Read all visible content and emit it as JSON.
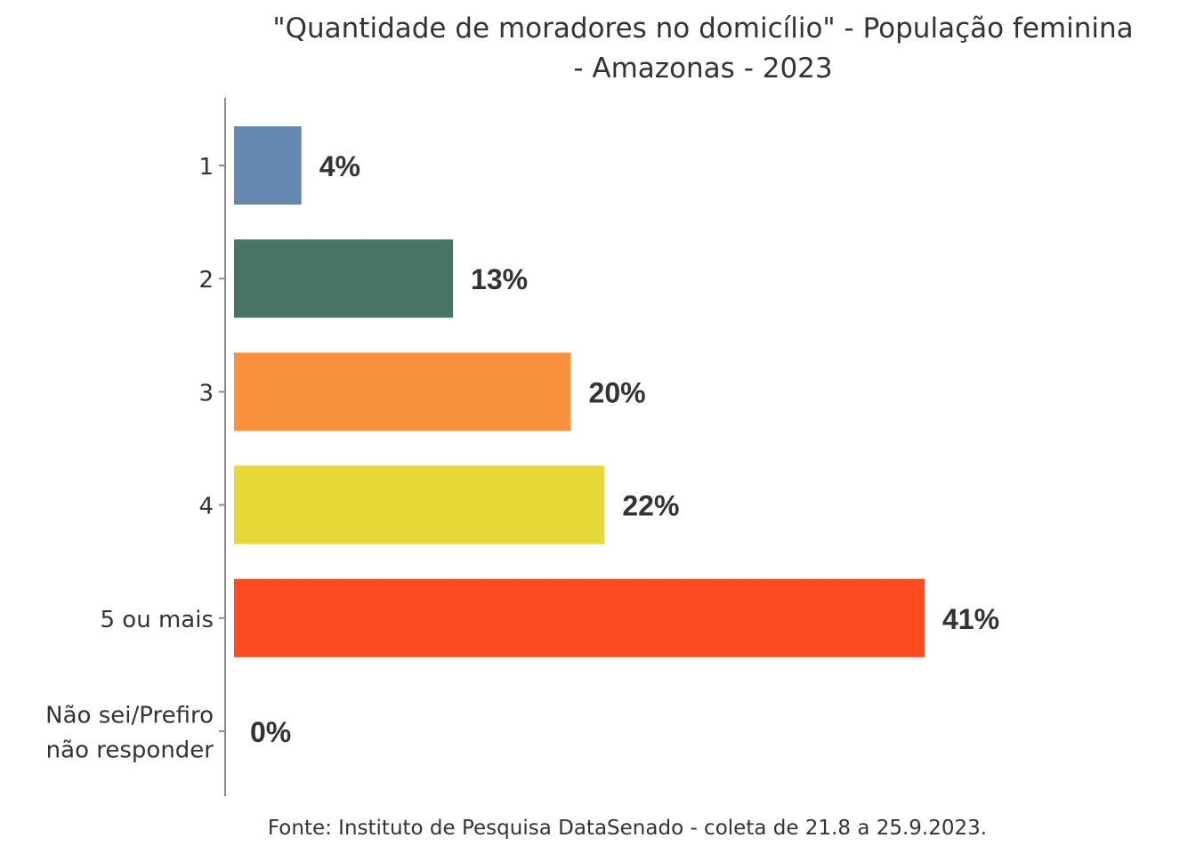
{
  "chart_data": {
    "type": "bar",
    "orientation": "horizontal",
    "title_lines": [
      "\"Quantidade de moradores no domicílio\" - População feminina",
      "- Amazonas - 2023"
    ],
    "caption": "Fonte: Instituto de Pesquisa DataSenado - coleta de 21.8 a 25.9.2023.",
    "xlabel": "",
    "ylabel": "",
    "categories": [
      [
        "1"
      ],
      [
        "2"
      ],
      [
        "3"
      ],
      [
        "4"
      ],
      [
        "5 ou mais"
      ],
      [
        "Não sei/Prefiro",
        "não responder"
      ]
    ],
    "values": [
      4,
      13,
      20,
      22,
      41,
      0
    ],
    "data_labels": [
      "4%",
      "13%",
      "20%",
      "22%",
      "41%",
      "0%"
    ],
    "colors": [
      "#6687AF",
      "#467563",
      "#FA913C",
      "#E6D836",
      "#FF4B21",
      "#999999"
    ],
    "unit": "%",
    "xlim": [
      0,
      41
    ],
    "grid": false,
    "legend": "none"
  }
}
